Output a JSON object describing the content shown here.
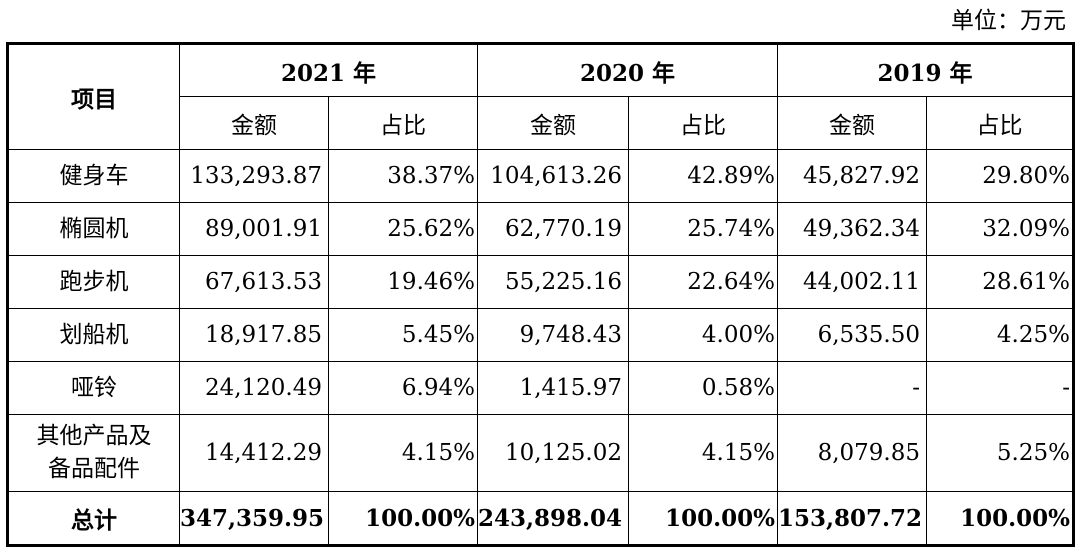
{
  "unit_label": "单位：万元",
  "header": {
    "item_label": "项目",
    "years": [
      "2021 年",
      "2020 年",
      "2019 年"
    ],
    "amount_label": "金额",
    "ratio_label": "占比"
  },
  "rows": [
    {
      "name": "健身车",
      "values": [
        "133,293.87",
        "38.37%",
        "104,613.26",
        "42.89%",
        "45,827.92",
        "29.80%"
      ]
    },
    {
      "name": "椭圆机",
      "values": [
        "89,001.91",
        "25.62%",
        "62,770.19",
        "25.74%",
        "49,362.34",
        "32.09%"
      ]
    },
    {
      "name": "跑步机",
      "values": [
        "67,613.53",
        "19.46%",
        "55,225.16",
        "22.64%",
        "44,002.11",
        "28.61%"
      ]
    },
    {
      "name": "划船机",
      "values": [
        "18,917.85",
        "5.45%",
        "9,748.43",
        "4.00%",
        "6,535.50",
        "4.25%"
      ]
    },
    {
      "name": "哑铃",
      "values": [
        "24,120.49",
        "6.94%",
        "1,415.97",
        "0.58%",
        "-",
        "-"
      ]
    },
    {
      "name": "其他产品及备品配件",
      "name_lines": [
        "其他产品及",
        "备品配件"
      ],
      "values": [
        "14,412.29",
        "4.15%",
        "10,125.02",
        "4.15%",
        "8,079.85",
        "5.25%"
      ]
    }
  ],
  "total": {
    "name": "总计",
    "values": [
      "347,359.95",
      "100.00%",
      "243,898.04",
      "100.00%",
      "153,807.72",
      "100.00%"
    ]
  }
}
